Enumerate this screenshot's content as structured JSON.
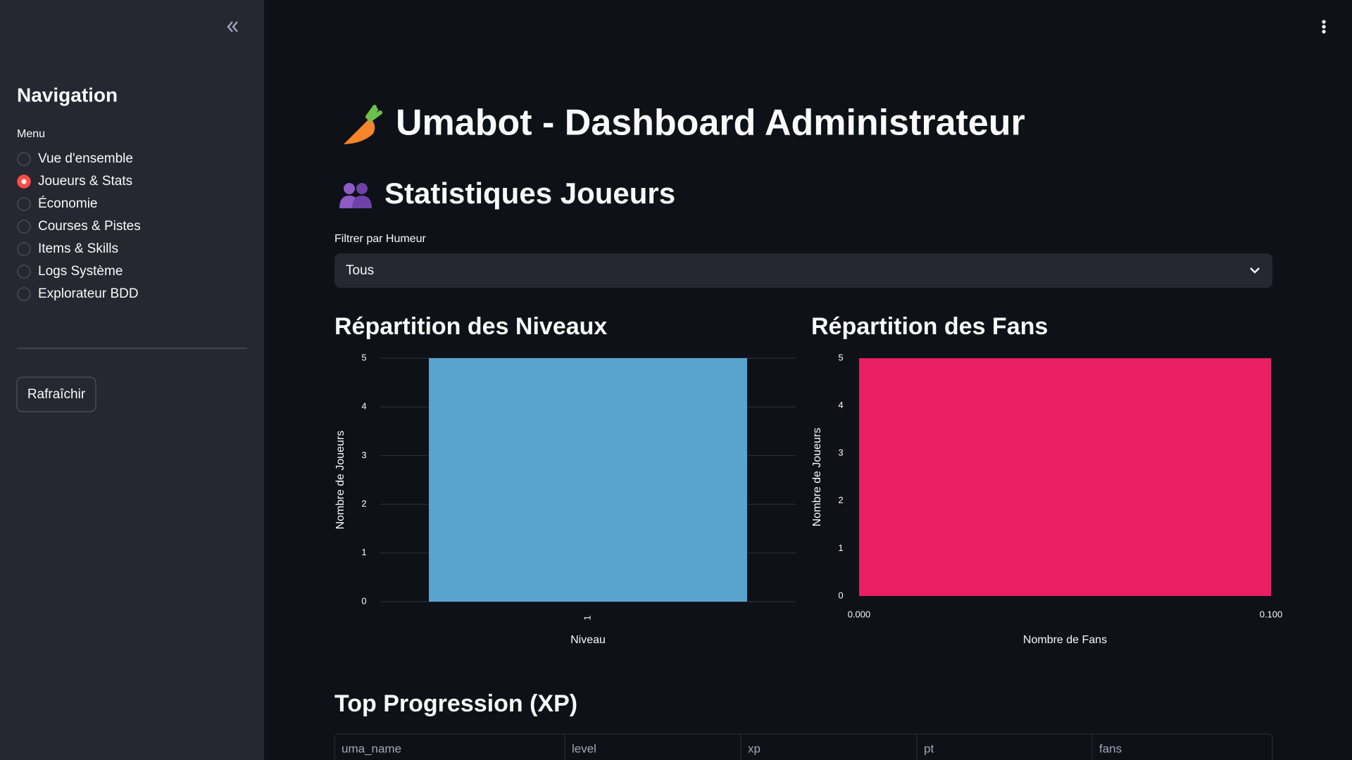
{
  "sidebar": {
    "title": "Navigation",
    "menu_label": "Menu",
    "items": [
      "Vue d'ensemble",
      "Joueurs & Stats",
      "Économie",
      "Courses & Pistes",
      "Items & Skills",
      "Logs Système",
      "Explorateur BDD"
    ],
    "selected_index": 1,
    "button": "Rafraîchir"
  },
  "header": {
    "title": "Umabot - Dashboard Administrateur",
    "section": "Statistiques Joueurs"
  },
  "filter": {
    "label": "Filtrer par Humeur",
    "value": "Tous"
  },
  "chart_data": [
    {
      "type": "bar",
      "title": "Répartition des Niveaux",
      "categories": [
        "1"
      ],
      "values": [
        5
      ],
      "color": "#5ba3cf",
      "ylim": [
        0,
        5
      ],
      "yticks": [
        0,
        1,
        2,
        3,
        4,
        5
      ],
      "grid": true,
      "xlabel": "Niveau",
      "ylabel": "Nombre de Joueurs"
    },
    {
      "type": "histogram",
      "title": "Répartition des Fans",
      "bins": [
        0,
        0.1
      ],
      "values": [
        5
      ],
      "color": "#e91e63",
      "xlim": [
        0,
        0.1
      ],
      "xticks": [
        {
          "value": 0,
          "label": "0.000"
        },
        {
          "value": 0.1,
          "label": "0.100"
        }
      ],
      "ylim": [
        0,
        5
      ],
      "yticks": [
        0,
        1,
        2,
        3,
        4,
        5
      ],
      "xlabel": "Nombre de Fans",
      "ylabel": "Nombre de Joueurs"
    }
  ],
  "table": {
    "title": "Top Progression (XP)",
    "columns": [
      "uma_name",
      "level",
      "xp",
      "pt",
      "fans"
    ]
  }
}
